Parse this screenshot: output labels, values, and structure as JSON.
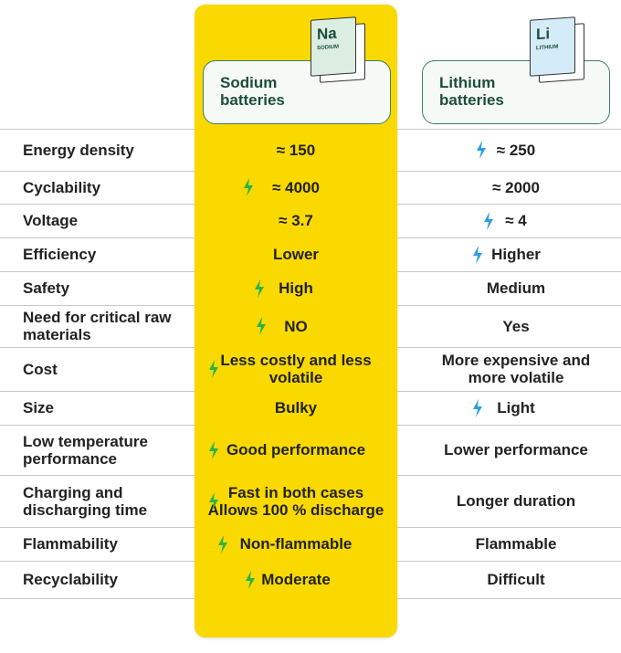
{
  "header": {
    "sodium": {
      "title": "Sodium batteries",
      "symbol": "Na",
      "element": "SODIUM"
    },
    "lithium": {
      "title": "Lithium batteries",
      "symbol": "Li",
      "element": "LITHIUM"
    }
  },
  "table": {
    "rows": [
      [
        "Energy density",
        "≈ 150",
        "≈ 250"
      ],
      [
        "Cyclability",
        "≈ 4000",
        "≈ 2000"
      ],
      [
        "Voltage",
        "≈ 3.7",
        "≈ 4"
      ],
      [
        "Efficiency",
        "Lower",
        "Higher"
      ],
      [
        "Safety",
        "High",
        "Medium"
      ],
      [
        "Need for critical raw materials",
        "NO",
        "Yes"
      ],
      [
        "Cost",
        "Less costly and less volatile",
        "More expensive and more volatile"
      ],
      [
        "Size",
        "Bulky",
        "Light"
      ],
      [
        "Low temperature performance",
        "Good performance",
        "Lower performance"
      ],
      [
        "Charging and discharging time",
        [
          "Fast in both cases",
          "Allows 100 % discharge"
        ],
        "Longer duration"
      ],
      [
        "Flammability",
        "Non-flammable",
        "Flammable"
      ],
      [
        "Recyclability",
        "Moderate",
        "Difficult"
      ]
    ]
  }
}
